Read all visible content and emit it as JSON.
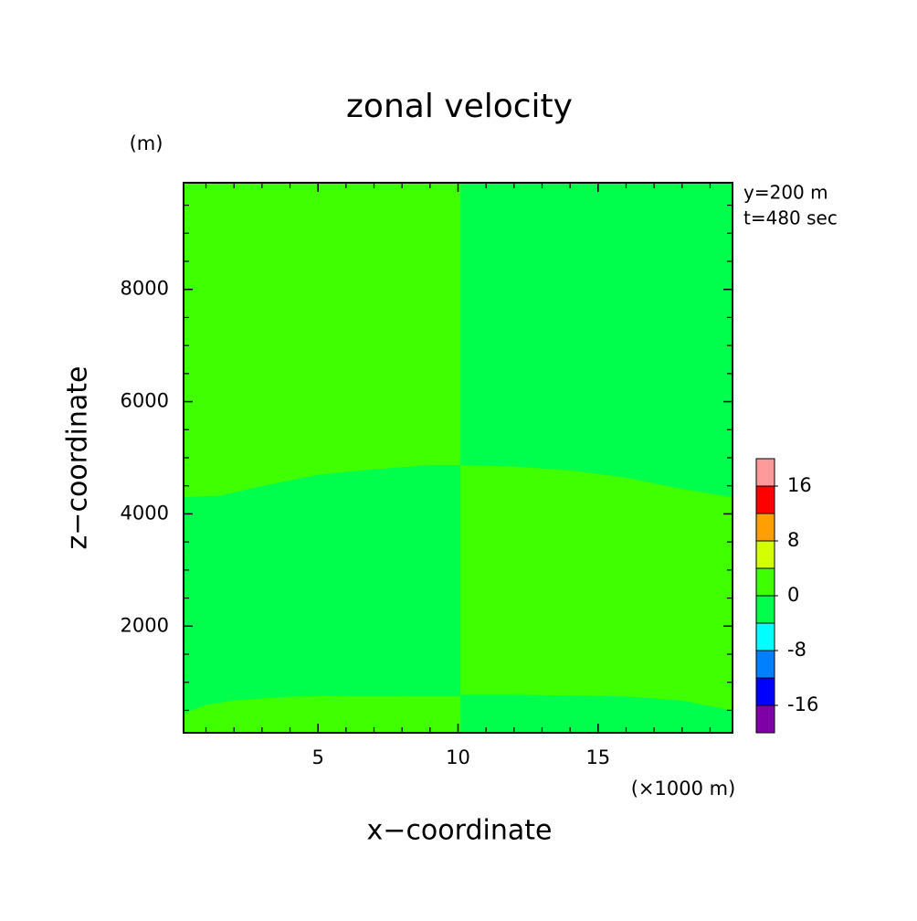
{
  "chart_data": {
    "type": "contour",
    "title": "zonal velocity",
    "x_label": "x−coordinate",
    "y_label": "z−coordinate",
    "x_unit": "(×1000 m)",
    "y_unit": "(m)",
    "annotations": [
      "y=200 m",
      "t=480 sec"
    ],
    "xlim": [
      0.2,
      19.8
    ],
    "xticks": [
      5,
      10,
      15
    ],
    "xminorticks": [
      1,
      2,
      3,
      4,
      6,
      7,
      8,
      9,
      11,
      12,
      13,
      14,
      16,
      17,
      18,
      19
    ],
    "ylim": [
      100,
      9900
    ],
    "yticks": [
      2000,
      4000,
      6000,
      8000
    ],
    "yminorticks": [
      500,
      1000,
      1500,
      2500,
      3000,
      3500,
      4500,
      5000,
      5500,
      6500,
      7000,
      7500,
      8500,
      9000,
      9500
    ],
    "panels": [
      {
        "lower": {
          "x": [
            0.2,
            1,
            2,
            4,
            6,
            8,
            10.1
          ],
          "z": [
            450,
            600,
            680,
            750,
            760,
            760,
            760
          ]
        },
        "upper": {
          "x": [
            0.2,
            1.5,
            3,
            5,
            7,
            9,
            10.1
          ],
          "z": [
            4300,
            4330,
            4500,
            4700,
            4800,
            4870,
            4870
          ]
        },
        "fills": [
          "#3fff00",
          "#00ff4c",
          "#3fff00"
        ]
      },
      {
        "lower": {
          "x": [
            10.1,
            12,
            14,
            16,
            18,
            19.8
          ],
          "z": [
            780,
            780,
            770,
            750,
            680,
            500
          ]
        },
        "upper": {
          "x": [
            10.1,
            12,
            14,
            16,
            18,
            19.8
          ],
          "z": [
            4870,
            4850,
            4780,
            4650,
            4450,
            4300
          ]
        },
        "fills": [
          "#00ff4c",
          "#3fff00",
          "#00ff4c"
        ]
      }
    ],
    "colorbar": {
      "levels": [
        -20,
        -16,
        -12,
        -8,
        -4,
        0,
        4,
        8,
        12,
        16,
        20
      ],
      "colors": [
        "#8000a8",
        "#0000ff",
        "#0080ff",
        "#00ffff",
        "#00ff4c",
        "#3fff00",
        "#d4ff00",
        "#ffa000",
        "#ff0000",
        "#ff9a9a"
      ],
      "ticks": [
        -16,
        -8,
        0,
        8,
        16
      ]
    }
  }
}
